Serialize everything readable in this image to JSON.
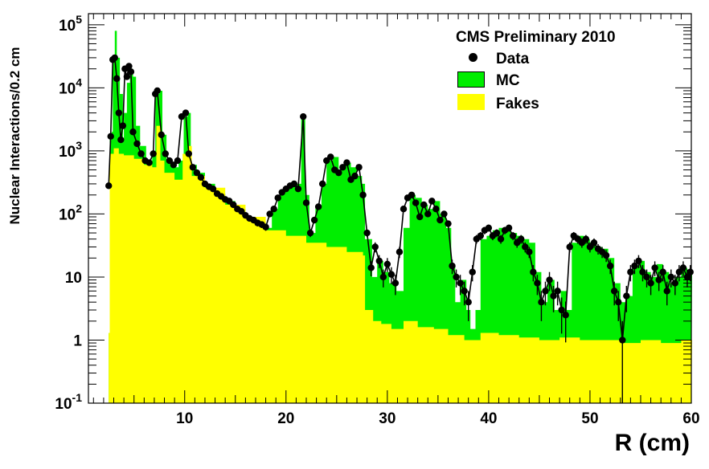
{
  "chart_data": {
    "type": "histogram",
    "title": "CMS Preliminary 2010",
    "xlabel": "R (cm)",
    "ylabel": "Nuclear Interactions/0.2 cm",
    "xlim": [
      0.5,
      60
    ],
    "ylim": [
      0.1,
      150000
    ],
    "yscale": "log",
    "x_ticks": [
      "10",
      "20",
      "30",
      "40",
      "50",
      "60"
    ],
    "y_ticks": [
      {
        "base": "10",
        "exp": "-1"
      },
      {
        "base": "1",
        "exp": ""
      },
      {
        "base": "10",
        "exp": ""
      },
      {
        "base": "10",
        "exp": "2"
      },
      {
        "base": "10",
        "exp": "3"
      },
      {
        "base": "10",
        "exp": "4"
      },
      {
        "base": "10",
        "exp": "5"
      }
    ],
    "grid": false,
    "legend_position": "top-right",
    "series": [
      {
        "name": "Data",
        "color": "#000000",
        "style": "markers with error bars"
      },
      {
        "name": "MC",
        "color": "#00ee00",
        "style": "filled histogram"
      },
      {
        "name": "Fakes",
        "color": "#ffff00",
        "style": "filled histogram"
      }
    ],
    "mc_envelope": [
      [
        2.5,
        1.3
      ],
      [
        2.6,
        1500
      ],
      [
        2.8,
        2000
      ],
      [
        2.9,
        25000
      ],
      [
        3.1,
        80000
      ],
      [
        3.3,
        30000
      ],
      [
        3.6,
        8000
      ],
      [
        3.9,
        1500
      ],
      [
        4.0,
        4000
      ],
      [
        4.3,
        12000
      ],
      [
        4.6,
        20000
      ],
      [
        4.9,
        15000
      ],
      [
        5.2,
        2500
      ],
      [
        5.6,
        1200
      ],
      [
        6.2,
        700
      ],
      [
        6.8,
        900
      ],
      [
        7.1,
        8000
      ],
      [
        7.5,
        9000
      ],
      [
        7.8,
        1800
      ],
      [
        8.2,
        700
      ],
      [
        8.8,
        550
      ],
      [
        9.4,
        700
      ],
      [
        9.9,
        3500
      ],
      [
        10.3,
        4000
      ],
      [
        10.6,
        600
      ],
      [
        11.2,
        450
      ],
      [
        12,
        300
      ],
      [
        13,
        210
      ],
      [
        14,
        160
      ],
      [
        15,
        120
      ],
      [
        16,
        90
      ],
      [
        17,
        75
      ],
      [
        18,
        60
      ],
      [
        18.6,
        120
      ],
      [
        19.2,
        200
      ],
      [
        19.8,
        250
      ],
      [
        20.4,
        280
      ],
      [
        21,
        300
      ],
      [
        21.5,
        3500
      ],
      [
        21.9,
        200
      ],
      [
        22.3,
        50
      ],
      [
        22.9,
        130
      ],
      [
        23.5,
        300
      ],
      [
        24,
        700
      ],
      [
        24.6,
        800
      ],
      [
        25.2,
        500
      ],
      [
        25.8,
        650
      ],
      [
        26.4,
        550
      ],
      [
        27,
        400
      ],
      [
        27.5,
        300
      ],
      [
        27.8,
        40
      ],
      [
        28.5,
        10
      ],
      [
        29,
        18
      ],
      [
        29.6,
        12
      ],
      [
        30.2,
        8
      ],
      [
        30.9,
        6
      ],
      [
        31.6,
        60
      ],
      [
        32.2,
        200
      ],
      [
        32.8,
        180
      ],
      [
        33.4,
        140
      ],
      [
        34,
        120
      ],
      [
        34.6,
        160
      ],
      [
        35.2,
        100
      ],
      [
        35.8,
        60
      ],
      [
        36.3,
        15
      ],
      [
        36.7,
        4
      ],
      [
        37.2,
        9
      ],
      [
        37.8,
        3
      ],
      [
        38.2,
        1.5
      ],
      [
        38.7,
        3
      ],
      [
        39.2,
        40
      ],
      [
        39.8,
        45
      ],
      [
        40.4,
        55
      ],
      [
        41,
        60
      ],
      [
        41.6,
        55
      ],
      [
        42.2,
        50
      ],
      [
        42.8,
        45
      ],
      [
        43.4,
        40
      ],
      [
        44,
        35
      ],
      [
        44.6,
        12
      ],
      [
        45.2,
        4
      ],
      [
        45.8,
        9
      ],
      [
        46.5,
        3
      ],
      [
        47.1,
        6
      ],
      [
        47.7,
        3
      ],
      [
        48.2,
        35
      ],
      [
        48.8,
        45
      ],
      [
        49.4,
        40
      ],
      [
        50,
        35
      ],
      [
        50.6,
        30
      ],
      [
        51.2,
        28
      ],
      [
        51.8,
        20
      ],
      [
        52.4,
        8
      ],
      [
        53,
        4
      ],
      [
        53.6,
        5
      ],
      [
        54.2,
        15
      ],
      [
        54.8,
        18
      ],
      [
        55.4,
        12
      ],
      [
        56,
        10
      ],
      [
        56.6,
        16
      ],
      [
        57.2,
        12
      ],
      [
        57.8,
        8
      ],
      [
        58.4,
        10
      ],
      [
        59,
        14
      ],
      [
        59.6,
        12
      ],
      [
        60,
        12
      ]
    ],
    "fakes_envelope": [
      [
        2.5,
        1.3
      ],
      [
        2.6,
        900
      ],
      [
        3.0,
        1100
      ],
      [
        3.5,
        900
      ],
      [
        4,
        850
      ],
      [
        5,
        750
      ],
      [
        6,
        600
      ],
      [
        6.8,
        550
      ],
      [
        7.2,
        2500
      ],
      [
        7.6,
        700
      ],
      [
        8,
        450
      ],
      [
        9,
        350
      ],
      [
        9.8,
        900
      ],
      [
        10.3,
        1200
      ],
      [
        10.7,
        400
      ],
      [
        12,
        260
      ],
      [
        14,
        140
      ],
      [
        16,
        90
      ],
      [
        18,
        55
      ],
      [
        20,
        45
      ],
      [
        22,
        35
      ],
      [
        24,
        30
      ],
      [
        26,
        25
      ],
      [
        27.6,
        22
      ],
      [
        27.8,
        3
      ],
      [
        28.6,
        2
      ],
      [
        29.4,
        1.8
      ],
      [
        30.4,
        1.5
      ],
      [
        31.6,
        2
      ],
      [
        33,
        1.6
      ],
      [
        34.6,
        1.5
      ],
      [
        36,
        1.2
      ],
      [
        37.6,
        1
      ],
      [
        39.2,
        1.3
      ],
      [
        41,
        1.2
      ],
      [
        43,
        1.1
      ],
      [
        45,
        1
      ],
      [
        47,
        1.1
      ],
      [
        49,
        1
      ],
      [
        51,
        1
      ],
      [
        53,
        0.9
      ],
      [
        55,
        1
      ],
      [
        57,
        0.9
      ],
      [
        59,
        1
      ],
      [
        60,
        1
      ]
    ],
    "data_points": [
      [
        2.5,
        280
      ],
      [
        2.7,
        1700
      ],
      [
        2.9,
        28000
      ],
      [
        3.1,
        30000
      ],
      [
        3.3,
        14000
      ],
      [
        3.5,
        4000
      ],
      [
        3.7,
        1500
      ],
      [
        3.9,
        2500
      ],
      [
        4.1,
        20000
      ],
      [
        4.3,
        15000
      ],
      [
        4.5,
        22000
      ],
      [
        4.7,
        18000
      ],
      [
        4.9,
        2000
      ],
      [
        5.3,
        1300
      ],
      [
        5.7,
        900
      ],
      [
        6.1,
        700
      ],
      [
        6.5,
        650
      ],
      [
        6.9,
        900
      ],
      [
        7.1,
        8000
      ],
      [
        7.3,
        9000
      ],
      [
        7.7,
        1800
      ],
      [
        8.1,
        900
      ],
      [
        8.5,
        700
      ],
      [
        8.9,
        600
      ],
      [
        9.3,
        700
      ],
      [
        9.7,
        3500
      ],
      [
        10.1,
        4000
      ],
      [
        10.4,
        900
      ],
      [
        10.8,
        550
      ],
      [
        11.2,
        450
      ],
      [
        11.6,
        380
      ],
      [
        12,
        300
      ],
      [
        12.4,
        270
      ],
      [
        12.8,
        250
      ],
      [
        13.2,
        210
      ],
      [
        13.6,
        190
      ],
      [
        14,
        170
      ],
      [
        14.4,
        160
      ],
      [
        14.8,
        140
      ],
      [
        15.2,
        120
      ],
      [
        15.6,
        110
      ],
      [
        16,
        95
      ],
      [
        16.4,
        85
      ],
      [
        16.8,
        80
      ],
      [
        17.2,
        72
      ],
      [
        17.6,
        68
      ],
      [
        18,
        62
      ],
      [
        18.4,
        100
      ],
      [
        18.8,
        120
      ],
      [
        19.2,
        180
      ],
      [
        19.6,
        220
      ],
      [
        20,
        250
      ],
      [
        20.4,
        280
      ],
      [
        20.8,
        300
      ],
      [
        21.2,
        250
      ],
      [
        21.7,
        3500
      ],
      [
        22,
        150
      ],
      [
        22.4,
        50
      ],
      [
        22.8,
        80
      ],
      [
        23.2,
        130
      ],
      [
        23.6,
        300
      ],
      [
        24,
        700
      ],
      [
        24.4,
        800
      ],
      [
        24.8,
        500
      ],
      [
        25.2,
        450
      ],
      [
        25.6,
        550
      ],
      [
        26,
        650
      ],
      [
        26.4,
        350
      ],
      [
        26.8,
        400
      ],
      [
        27.2,
        550
      ],
      [
        27.6,
        200
      ],
      [
        28,
        50
      ],
      [
        28.4,
        14
      ],
      [
        28.8,
        30
      ],
      [
        29.2,
        18
      ],
      [
        29.6,
        10
      ],
      [
        30,
        16
      ],
      [
        30.4,
        11
      ],
      [
        30.8,
        8
      ],
      [
        31.2,
        25
      ],
      [
        31.6,
        120
      ],
      [
        32,
        180
      ],
      [
        32.4,
        200
      ],
      [
        32.8,
        150
      ],
      [
        33.2,
        90
      ],
      [
        33.6,
        140
      ],
      [
        34,
        100
      ],
      [
        34.4,
        160
      ],
      [
        34.8,
        120
      ],
      [
        35.2,
        80
      ],
      [
        35.6,
        100
      ],
      [
        36,
        70
      ],
      [
        36.4,
        15
      ],
      [
        36.8,
        10
      ],
      [
        37.2,
        8
      ],
      [
        37.6,
        6
      ],
      [
        38,
        4
      ],
      [
        38.4,
        12
      ],
      [
        38.8,
        40
      ],
      [
        39.2,
        45
      ],
      [
        39.6,
        55
      ],
      [
        40,
        60
      ],
      [
        40.4,
        45
      ],
      [
        40.8,
        50
      ],
      [
        41.2,
        40
      ],
      [
        41.6,
        55
      ],
      [
        42,
        60
      ],
      [
        42.4,
        45
      ],
      [
        42.8,
        35
      ],
      [
        43.2,
        40
      ],
      [
        43.6,
        30
      ],
      [
        44,
        25
      ],
      [
        44.4,
        12
      ],
      [
        44.8,
        8
      ],
      [
        45.2,
        4
      ],
      [
        45.6,
        6
      ],
      [
        46,
        9
      ],
      [
        46.4,
        5
      ],
      [
        46.8,
        6
      ],
      [
        47.2,
        3
      ],
      [
        47.6,
        2.5
      ],
      [
        48,
        30
      ],
      [
        48.4,
        45
      ],
      [
        48.8,
        40
      ],
      [
        49.2,
        35
      ],
      [
        49.6,
        40
      ],
      [
        50,
        30
      ],
      [
        50.4,
        35
      ],
      [
        50.8,
        28
      ],
      [
        51.2,
        25
      ],
      [
        51.6,
        22
      ],
      [
        52,
        15
      ],
      [
        52.4,
        6
      ],
      [
        52.8,
        4
      ],
      [
        53.2,
        1
      ],
      [
        53.6,
        5
      ],
      [
        54,
        12
      ],
      [
        54.4,
        15
      ],
      [
        54.8,
        18
      ],
      [
        55.2,
        12
      ],
      [
        55.6,
        10
      ],
      [
        56,
        8
      ],
      [
        56.4,
        14
      ],
      [
        56.8,
        9
      ],
      [
        57.2,
        12
      ],
      [
        57.6,
        6
      ],
      [
        58,
        10
      ],
      [
        58.4,
        8
      ],
      [
        58.8,
        12
      ],
      [
        59.2,
        14
      ],
      [
        59.6,
        10
      ],
      [
        59.9,
        12
      ]
    ],
    "legend": {
      "title": "CMS Preliminary 2010",
      "entries": [
        {
          "label": "Data",
          "marker": "dot",
          "color": "#000000"
        },
        {
          "label": "MC",
          "marker": "box",
          "color": "#00ee00"
        },
        {
          "label": "Fakes",
          "marker": "box",
          "color": "#ffff00"
        }
      ]
    }
  }
}
